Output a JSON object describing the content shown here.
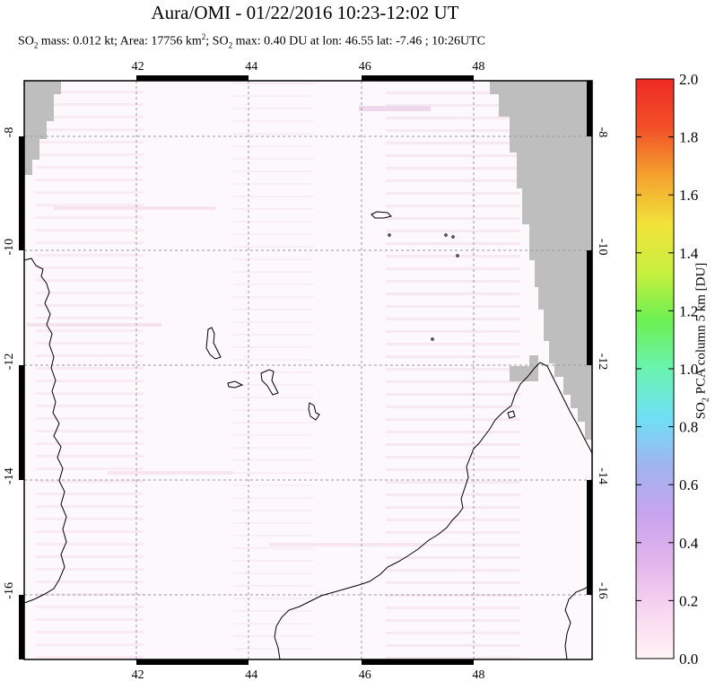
{
  "header": {
    "title": "Aura/OMI - 01/22/2016 10:23-12:02 UT",
    "subtitle_parts": {
      "so": "SO",
      "sub2": "2",
      "mass_text": " mass: 0.012 kt; Area: 17756 km",
      "sup2": "2",
      "sep": "; SO",
      "max_text": " max: 0.40 DU at lon: 46.55 lat: -7.46 ; 10:26UTC"
    }
  },
  "map": {
    "lon_range": [
      40,
      50
    ],
    "lat_range": [
      -17.2,
      -7.1
    ],
    "top_lon_labels": [
      "42",
      "44",
      "46",
      "48"
    ],
    "bottom_lon_labels": [
      "42",
      "44",
      "46",
      "48"
    ],
    "left_lat_labels": [
      "-8",
      "-10",
      "-12",
      "-14",
      "-16"
    ],
    "right_lat_labels": [
      "-8",
      "-10",
      "-12",
      "-14",
      "-16"
    ],
    "grid": "dashed",
    "no_data_color": "#bebebe",
    "coastline_color": "#000000"
  },
  "colorbar": {
    "label_parts": {
      "a": "SO",
      "b": "2",
      "c": " PCA column 5 km [DU]"
    },
    "ticks": [
      "2.0",
      "1.8",
      "1.6",
      "1.4",
      "1.2",
      "1.0",
      "0.8",
      "0.6",
      "0.4",
      "0.2",
      "0.0"
    ],
    "min": 0.0,
    "max": 2.0,
    "colors": [
      "#fff4f4",
      "#f8d6f0",
      "#e2b4ec",
      "#c8a4ee",
      "#a0b4f0",
      "#6ee0f4",
      "#6af4b0",
      "#6cf052",
      "#c8f03e",
      "#f2e23a",
      "#f4a22e",
      "#f25028",
      "#ee2a24"
    ]
  }
}
